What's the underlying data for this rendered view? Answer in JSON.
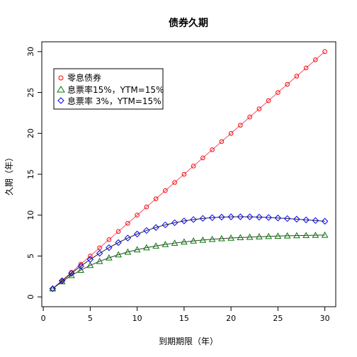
{
  "chart_data": {
    "type": "line",
    "title": "债券久期",
    "xlabel": "到期期限（年）",
    "ylabel": "久期（年）",
    "xlim": [
      1,
      30
    ],
    "ylim": [
      0,
      30
    ],
    "x": [
      1,
      2,
      3,
      4,
      5,
      6,
      7,
      8,
      9,
      10,
      11,
      12,
      13,
      14,
      15,
      16,
      17,
      18,
      19,
      20,
      21,
      22,
      23,
      24,
      25,
      26,
      27,
      28,
      29,
      30
    ],
    "xticks": [
      0,
      5,
      10,
      15,
      20,
      25,
      30
    ],
    "yticks": [
      0,
      5,
      10,
      15,
      20,
      25,
      30
    ],
    "grid": false,
    "legend_position": "top-left",
    "series": [
      {
        "name": "零息债券",
        "color": "#ff0000",
        "line_color": "#e8556c",
        "marker": "circle",
        "values": [
          1,
          2,
          3,
          4,
          5,
          6,
          7,
          8,
          9,
          10,
          11,
          12,
          13,
          14,
          15,
          16,
          17,
          18,
          19,
          20,
          21,
          22,
          23,
          24,
          25,
          26,
          27,
          28,
          29,
          30
        ]
      },
      {
        "name": "息票率15%，YTM=15%",
        "color": "#007700",
        "line_color": "#3a3a3a",
        "marker": "triangle",
        "values": [
          1.0,
          1.87,
          2.63,
          3.28,
          3.86,
          4.35,
          4.78,
          5.16,
          5.49,
          5.77,
          6.02,
          6.23,
          6.42,
          6.58,
          6.72,
          6.85,
          6.95,
          7.05,
          7.13,
          7.2,
          7.26,
          7.31,
          7.36,
          7.4,
          7.44,
          7.47,
          7.5,
          7.52,
          7.54,
          7.56
        ]
      },
      {
        "name": "息票率  3%，YTM=15%",
        "color": "#0000ff",
        "line_color": "#222222",
        "marker": "diamond",
        "values": [
          1.0,
          1.97,
          2.89,
          3.76,
          4.58,
          5.33,
          6.02,
          6.64,
          7.2,
          7.69,
          8.12,
          8.49,
          8.81,
          9.07,
          9.29,
          9.46,
          9.6,
          9.69,
          9.76,
          9.79,
          9.8,
          9.79,
          9.76,
          9.71,
          9.65,
          9.58,
          9.51,
          9.42,
          9.34,
          9.25
        ]
      }
    ]
  }
}
